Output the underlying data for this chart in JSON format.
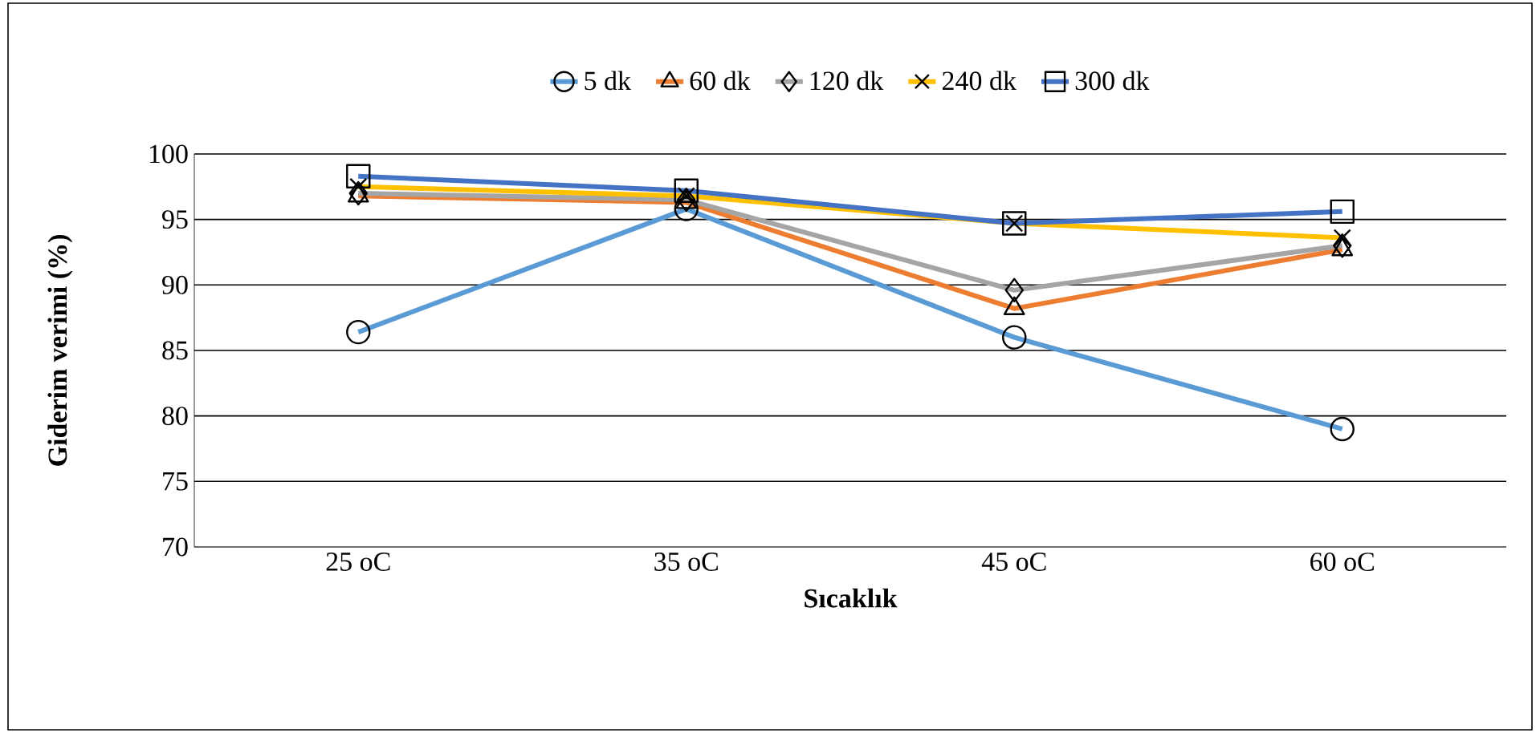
{
  "chart_data": {
    "type": "line",
    "xlabel": "Sıcaklık",
    "ylabel": "Giderim verimi (%)",
    "categories": [
      "25 oC",
      "35 oC",
      "45 oC",
      "60 oC"
    ],
    "series": [
      {
        "name": "5 dk",
        "color": "#5b9bd5",
        "marker": "circle",
        "values": [
          86.4,
          95.8,
          86.0,
          79.0
        ]
      },
      {
        "name": "60 dk",
        "color": "#ed7d31",
        "marker": "triangle",
        "values": [
          96.8,
          96.3,
          88.2,
          92.7
        ]
      },
      {
        "name": "120 dk",
        "color": "#a5a5a5",
        "marker": "diamond",
        "values": [
          97.0,
          96.5,
          89.6,
          93.0
        ]
      },
      {
        "name": "240 dk",
        "color": "#ffc000",
        "marker": "cross",
        "values": [
          97.5,
          96.8,
          94.7,
          93.6
        ]
      },
      {
        "name": "300 dk",
        "color": "#4472c4",
        "marker": "square",
        "values": [
          98.3,
          97.2,
          94.7,
          95.6
        ]
      }
    ],
    "ylim": [
      70,
      100
    ],
    "yticks": [
      70,
      75,
      80,
      85,
      90,
      95,
      100
    ],
    "grid": "y",
    "legend": "top"
  }
}
